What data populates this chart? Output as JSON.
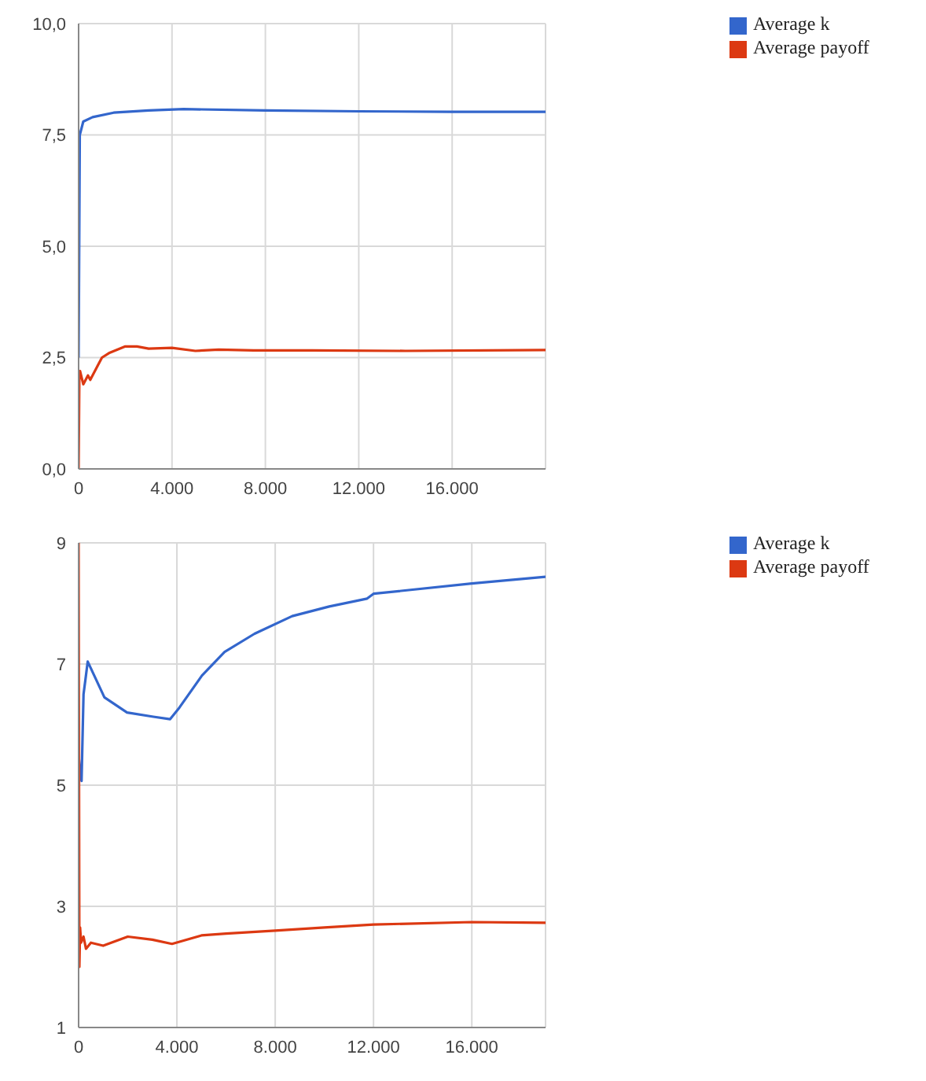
{
  "chart_data": [
    {
      "type": "line",
      "xlim": [
        0,
        20000
      ],
      "xticks": [
        0,
        {
          "value": 4000,
          "label": "4.000"
        },
        {
          "value": 8000,
          "label": "8.000"
        },
        {
          "value": 12000,
          "label": "12.000"
        },
        {
          "value": 16000,
          "label": "16.000"
        }
      ],
      "ylim": [
        0,
        10
      ],
      "yticks": [
        {
          "value": 0,
          "label": "0,0"
        },
        {
          "value": 2.5,
          "label": "2,5"
        },
        {
          "value": 5,
          "label": "5,0"
        },
        {
          "value": 7.5,
          "label": "7,5"
        },
        {
          "value": 10,
          "label": "10,0"
        }
      ],
      "grid": true,
      "legend": "top right",
      "series": [
        {
          "name": "Average k",
          "color": "#3366cc",
          "x": [
            0,
            50,
            200,
            600,
            1500,
            3000,
            4500,
            8000,
            12000,
            16000,
            20000
          ],
          "values": [
            2.5,
            7.5,
            7.8,
            7.9,
            8.0,
            8.05,
            8.08,
            8.05,
            8.03,
            8.02,
            8.02
          ]
        },
        {
          "name": "Average payoff",
          "color": "#dc3912",
          "x": [
            0,
            30,
            60,
            200,
            400,
            500,
            800,
            1000,
            1300,
            2000,
            2500,
            3000,
            4000,
            5000,
            6000,
            7500,
            10000,
            14000,
            20000
          ],
          "values": [
            0,
            2.0,
            2.2,
            1.9,
            2.1,
            2.0,
            2.3,
            2.5,
            2.6,
            2.75,
            2.75,
            2.7,
            2.72,
            2.65,
            2.68,
            2.66,
            2.66,
            2.65,
            2.67
          ]
        }
      ]
    },
    {
      "type": "line",
      "xlim": [
        0,
        19000
      ],
      "xticks": [
        0,
        {
          "value": 4000,
          "label": "4.000"
        },
        {
          "value": 8000,
          "label": "8.000"
        },
        {
          "value": 12000,
          "label": "12.000"
        },
        {
          "value": 16000,
          "label": "16.000"
        }
      ],
      "ylim": [
        1,
        9
      ],
      "yticks": [
        1,
        3,
        5,
        7,
        9
      ],
      "grid": true,
      "legend": "top right",
      "series": [
        {
          "name": "Average k",
          "color": "#3366cc",
          "x": [
            0,
            40,
            120,
            200,
            280,
            370,
            1050,
            1970,
            3040,
            3725,
            4100,
            5020,
            5940,
            7160,
            8690,
            10200,
            11740,
            12000,
            16000,
            19000
          ],
          "values": [
            5.5,
            5.3,
            5.07,
            6.5,
            6.75,
            7.04,
            6.45,
            6.2,
            6.13,
            6.09,
            6.28,
            6.81,
            7.2,
            7.5,
            7.79,
            7.95,
            8.08,
            8.16,
            8.33,
            8.44
          ]
        },
        {
          "name": "Average payoff",
          "color": "#dc3912",
          "x": [
            0,
            30,
            60,
            100,
            200,
            300,
            500,
            1000,
            2000,
            3000,
            3800,
            5000,
            6000,
            8000,
            10000,
            12000,
            16000,
            19000
          ],
          "values": [
            9,
            2.0,
            2.65,
            2.4,
            2.5,
            2.3,
            2.4,
            2.35,
            2.5,
            2.45,
            2.38,
            2.52,
            2.55,
            2.6,
            2.65,
            2.7,
            2.74,
            2.73
          ]
        }
      ]
    }
  ]
}
